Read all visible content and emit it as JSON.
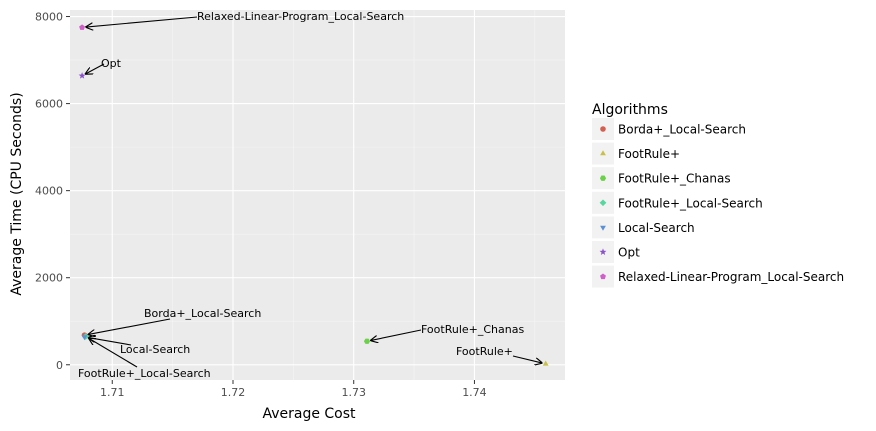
{
  "chart_data": {
    "type": "scatter",
    "xlabel": "Average Cost",
    "ylabel": "Average Time (CPU Seconds)",
    "xlim": [
      1.7065,
      1.7475
    ],
    "ylim": [
      -350,
      8150
    ],
    "x_ticks": [
      1.71,
      1.72,
      1.73,
      1.74
    ],
    "x_tick_labels": [
      "1.71",
      "1.72",
      "1.73",
      "1.74"
    ],
    "y_ticks": [
      0,
      2000,
      4000,
      6000,
      8000
    ],
    "y_tick_labels": [
      "0",
      "2000",
      "4000",
      "6000",
      "8000"
    ],
    "grid": true,
    "legend": {
      "title": "Algorithms",
      "placement": "right"
    },
    "series": [
      {
        "name": "Borda+_Local-Search",
        "color": "#d35f50",
        "shape": "circle",
        "x": 1.7077,
        "y": 680
      },
      {
        "name": "FootRule+",
        "color": "#c8c04a",
        "shape": "triangle-up",
        "x": 1.7459,
        "y": 20
      },
      {
        "name": "FootRule+_Chanas",
        "color": "#6ad149",
        "shape": "hexagon",
        "x": 1.7311,
        "y": 540
      },
      {
        "name": "FootRule+_Local-Search",
        "color": "#56d6a0",
        "shape": "diamond",
        "x": 1.7078,
        "y": 650
      },
      {
        "name": "Local-Search",
        "color": "#5b8fd6",
        "shape": "triangle-down",
        "x": 1.7077,
        "y": 640
      },
      {
        "name": "Opt",
        "color": "#8a52c9",
        "shape": "star",
        "x": 1.7075,
        "y": 6640
      },
      {
        "name": "Relaxed-Linear-Program_Local-Search",
        "color": "#d05fc9",
        "shape": "pentagon",
        "x": 1.7075,
        "y": 7750
      }
    ],
    "annotations": [
      {
        "text": "Relaxed-Linear-Program_Local-Search",
        "target": "Relaxed-Linear-Program_Local-Search"
      },
      {
        "text": "Opt",
        "target": "Opt"
      },
      {
        "text": "Borda+_Local-Search",
        "target": "Borda+_Local-Search"
      },
      {
        "text": "Local-Search",
        "target": "Local-Search"
      },
      {
        "text": "FootRule+_Local-Search",
        "target": "FootRule+_Local-Search"
      },
      {
        "text": "FootRule+_Chanas",
        "target": "FootRule+_Chanas"
      },
      {
        "text": "FootRule+",
        "target": "FootRule+"
      }
    ]
  }
}
